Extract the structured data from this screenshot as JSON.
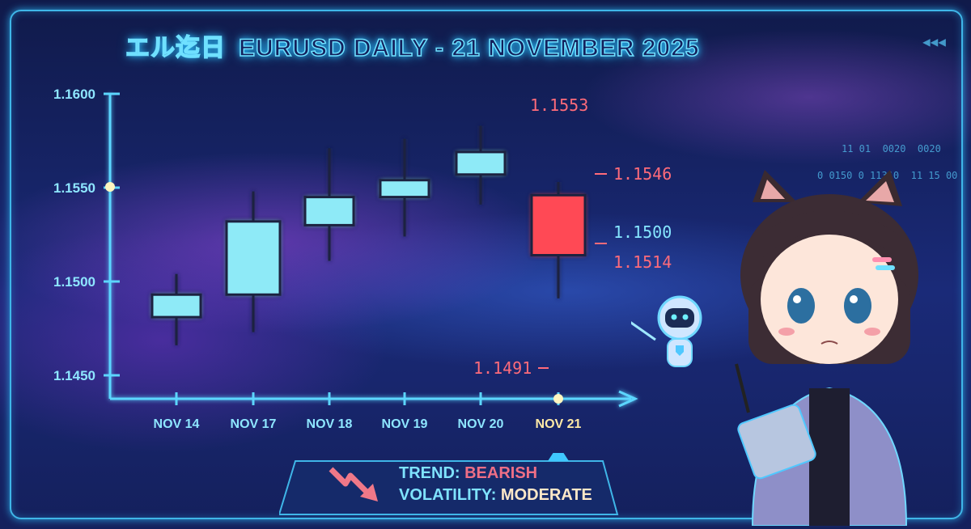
{
  "title": {
    "jp": "エル迄日",
    "main": "EURUSD DAILY - 21 NOVEMBER 2025"
  },
  "colors": {
    "bullish": "#8eeaf7",
    "bearish": "#ff4a55",
    "axis": "#5cd6ff",
    "accent_label": "#ff6b7a",
    "neutral_label": "#86e6ff"
  },
  "chart_data": {
    "type": "candlestick",
    "title": "EURUSD DAILY - 21 NOVEMBER 2025",
    "categories": [
      "NOV 14",
      "NOV 17",
      "NOV 18",
      "NOV 19",
      "NOV 20",
      "NOV 21"
    ],
    "highlight_category": "NOV 21",
    "series": [
      {
        "date": "NOV 14",
        "open": 1.1481,
        "high": 1.1504,
        "low": 1.1466,
        "close": 1.1493
      },
      {
        "date": "NOV 17",
        "open": 1.1493,
        "high": 1.1548,
        "low": 1.1473,
        "close": 1.1532
      },
      {
        "date": "NOV 18",
        "open": 1.153,
        "high": 1.1571,
        "low": 1.1511,
        "close": 1.1545
      },
      {
        "date": "NOV 19",
        "open": 1.1545,
        "high": 1.1576,
        "low": 1.1524,
        "close": 1.1554
      },
      {
        "date": "NOV 20",
        "open": 1.1557,
        "high": 1.1583,
        "low": 1.1541,
        "close": 1.1569
      },
      {
        "date": "NOV 21",
        "open": 1.1546,
        "high": 1.1553,
        "low": 1.1491,
        "close": 1.1514
      }
    ],
    "y_ticks": [
      "1.1600",
      "1.1550",
      "1.1500",
      "1.1450"
    ],
    "ylim": [
      1.144,
      1.161
    ],
    "annotations": {
      "high": "1.1553",
      "open": "1.1546",
      "level": "1.1500",
      "close": "1.1514",
      "low": "1.1491"
    }
  },
  "panel": {
    "trend_label": "TREND:",
    "trend_value": "BEARISH",
    "volatility_label": "VOLATILITY:",
    "volatility_value": "MODERATE",
    "icon": "trend-down-arrow-icon"
  },
  "decor": {
    "rewind_icon": "rewind-icon",
    "code_lines": [
      "11 01  0020  0020",
      "0 0150 0 11310  11 15 00"
    ]
  }
}
